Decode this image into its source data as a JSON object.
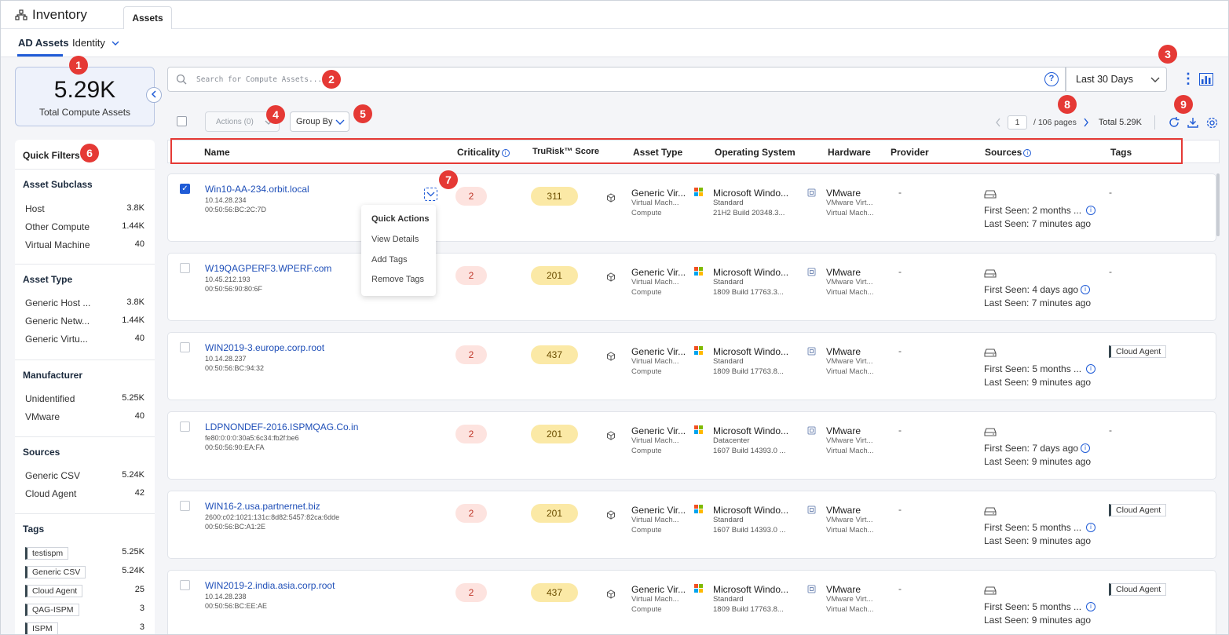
{
  "app": {
    "title": "Inventory",
    "tab": "Assets"
  },
  "subnav": {
    "active": "AD Assets",
    "other": "Identity"
  },
  "stat": {
    "value": "5.29K",
    "label": "Total Compute Assets"
  },
  "search": {
    "placeholder": "Search for Compute Assets..."
  },
  "daterange": {
    "value": "Last 30 Days"
  },
  "toolbar": {
    "actions_label": "Actions (0)",
    "groupby_label": "Group By"
  },
  "pager": {
    "current": "1",
    "pages": "/ 106 pages",
    "total": "Total 5.29K"
  },
  "columns": [
    "Name",
    "Criticality",
    "TruRisk™ Score",
    "Asset Type",
    "Operating System",
    "Hardware",
    "Provider",
    "Sources",
    "Tags"
  ],
  "filters": {
    "title": "Quick Filters",
    "sections": [
      {
        "title": "Asset Subclass",
        "items": [
          {
            "label": "Host",
            "count": "3.8K"
          },
          {
            "label": "Other Compute",
            "count": "1.44K"
          },
          {
            "label": "Virtual Machine",
            "count": "40"
          }
        ]
      },
      {
        "title": "Asset Type",
        "items": [
          {
            "label": "Generic Host ...",
            "count": "3.8K"
          },
          {
            "label": "Generic Netw...",
            "count": "1.44K"
          },
          {
            "label": "Generic Virtu...",
            "count": "40"
          }
        ]
      },
      {
        "title": "Manufacturer",
        "items": [
          {
            "label": "Unidentified",
            "count": "5.25K"
          },
          {
            "label": "VMware",
            "count": "40"
          }
        ]
      },
      {
        "title": "Sources",
        "items": [
          {
            "label": "Generic CSV",
            "count": "5.24K"
          },
          {
            "label": "Cloud Agent",
            "count": "42"
          }
        ]
      },
      {
        "title": "Tags",
        "items": [
          {
            "label": "testispm",
            "count": "5.25K"
          },
          {
            "label": "Generic CSV",
            "count": "5.24K"
          },
          {
            "label": "Cloud Agent",
            "count": "25"
          },
          {
            "label": "QAG-ISPM",
            "count": "3"
          },
          {
            "label": "ISPM",
            "count": "3"
          }
        ]
      }
    ]
  },
  "quick_actions": {
    "title": "Quick Actions",
    "items": [
      "View Details",
      "Add Tags",
      "Remove Tags"
    ]
  },
  "rows": [
    {
      "name": "Win10-AA-234.orbit.local",
      "ip": "10.14.28.234",
      "mac": "00:50:56:BC:2C:7D",
      "criticality": "2",
      "trurisk": "311",
      "asset_type": [
        "Generic Vir...",
        "Virtual Mach...",
        "Compute"
      ],
      "os": [
        "Microsoft Windo...",
        "Standard",
        "21H2 Build 20348.3..."
      ],
      "hardware": [
        "VMware",
        "VMware Virt...",
        "Virtual Mach..."
      ],
      "provider": "-",
      "first_seen": "First Seen: 2 months ...",
      "last_seen": "Last Seen: 7 minutes ago",
      "tag": "-",
      "checked": true
    },
    {
      "name": "W19QAGPERF3.WPERF.com",
      "ip": "10.45.212.193",
      "mac": "00:50:56:90:80:6F",
      "criticality": "2",
      "trurisk": "201",
      "asset_type": [
        "Generic Vir...",
        "Virtual Mach...",
        "Compute"
      ],
      "os": [
        "Microsoft Windo...",
        "Standard",
        "1809 Build 17763.3..."
      ],
      "hardware": [
        "VMware",
        "VMware Virt...",
        "Virtual Mach..."
      ],
      "provider": "-",
      "first_seen": "First Seen: 4 days ago",
      "last_seen": "Last Seen: 7 minutes ago",
      "tag": "-",
      "checked": false
    },
    {
      "name": "WIN2019-3.europe.corp.root",
      "ip": "10.14.28.237",
      "mac": "00:50:56:BC:94:32",
      "criticality": "2",
      "trurisk": "437",
      "asset_type": [
        "Generic Vir...",
        "Virtual Mach...",
        "Compute"
      ],
      "os": [
        "Microsoft Windo...",
        "Standard",
        "1809 Build 17763.8..."
      ],
      "hardware": [
        "VMware",
        "VMware Virt...",
        "Virtual Mach..."
      ],
      "provider": "-",
      "first_seen": "First Seen: 5 months ...",
      "last_seen": "Last Seen: 9 minutes ago",
      "tag": "Cloud Agent",
      "checked": false
    },
    {
      "name": "LDPNONDEF-2016.ISPMQAG.Co.in",
      "ip": "fe80:0:0:0:30a5:6c34:fb2f:be6",
      "mac": "00:50:56:90:EA:FA",
      "criticality": "2",
      "trurisk": "201",
      "asset_type": [
        "Generic Vir...",
        "Virtual Mach...",
        "Compute"
      ],
      "os": [
        "Microsoft Windo...",
        "Datacenter",
        "1607 Build 14393.0 ..."
      ],
      "hardware": [
        "VMware",
        "VMware Virt...",
        "Virtual Mach..."
      ],
      "provider": "-",
      "first_seen": "First Seen: 7 days ago",
      "last_seen": "Last Seen: 9 minutes ago",
      "tag": "-",
      "checked": false
    },
    {
      "name": "WIN16-2.usa.partnernet.biz",
      "ip": "2600:c02:1021:131c:8d82:5457:82ca:6dde",
      "mac": "00:50:56:BC:A1:2E",
      "criticality": "2",
      "trurisk": "201",
      "asset_type": [
        "Generic Vir...",
        "Virtual Mach...",
        "Compute"
      ],
      "os": [
        "Microsoft Windo...",
        "Standard",
        "1607 Build 14393.0 ..."
      ],
      "hardware": [
        "VMware",
        "VMware Virt...",
        "Virtual Mach..."
      ],
      "provider": "-",
      "first_seen": "First Seen: 5 months ...",
      "last_seen": "Last Seen: 9 minutes ago",
      "tag": "Cloud Agent",
      "checked": false
    },
    {
      "name": "WIN2019-2.india.asia.corp.root",
      "ip": "10.14.28.238",
      "mac": "00:50:56:BC:EE:AE",
      "criticality": "2",
      "trurisk": "437",
      "asset_type": [
        "Generic Vir...",
        "Virtual Mach...",
        "Compute"
      ],
      "os": [
        "Microsoft Windo...",
        "Standard",
        "1809 Build 17763.8..."
      ],
      "hardware": [
        "VMware",
        "VMware Virt...",
        "Virtual Mach..."
      ],
      "provider": "-",
      "first_seen": "First Seen: 5 months ...",
      "last_seen": "Last Seen: 9 minutes ago",
      "tag": "Cloud Agent",
      "checked": false
    }
  ],
  "badges": [
    "1",
    "2",
    "3",
    "4",
    "5",
    "6",
    "7",
    "8",
    "9"
  ],
  "colors": {
    "accent": "#1f5bd6",
    "badge": "#e53935",
    "criticality_bg": "#fde3df",
    "trurisk_bg": "#fbe9a6"
  }
}
